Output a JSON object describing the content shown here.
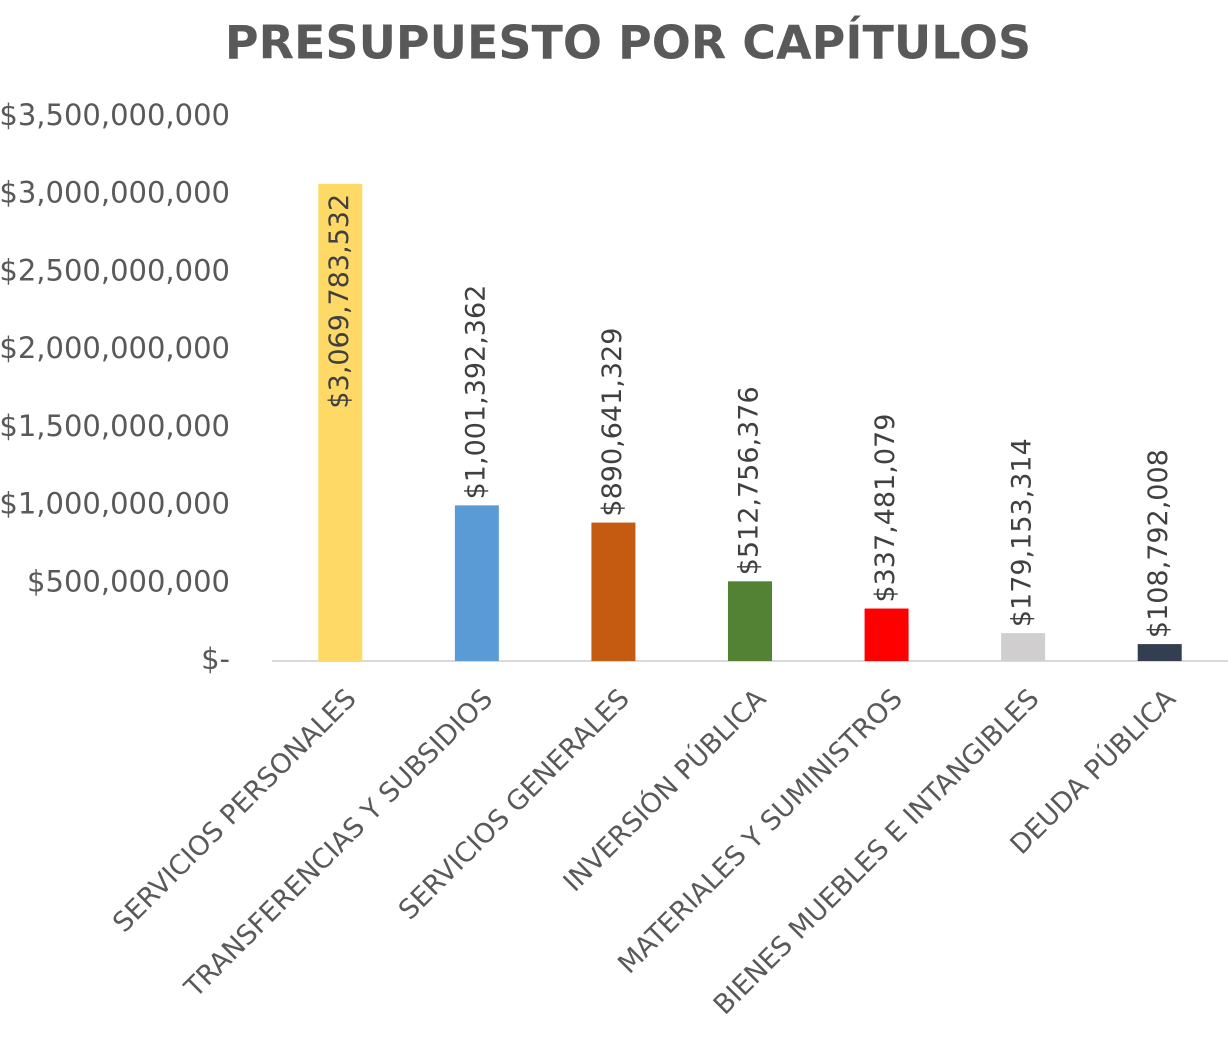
{
  "chart_data": {
    "type": "bar",
    "title": "PRESUPUESTO POR CAPÍTULOS",
    "categories": [
      "SERVICIOS PERSONALES",
      "TRANSFERENCIAS Y SUBSIDIOS",
      "SERVICIOS GENERALES",
      "INVERSIÓN PÚBLICA",
      "MATERIALES Y SUMINISTROS",
      "BIENES MUEBLES E INTANGIBLES",
      "DEUDA PÚBLICA"
    ],
    "values": [
      3069783532,
      1001392362,
      890641329,
      512756376,
      337481079,
      179153314,
      108792008
    ],
    "value_labels": [
      "$3,069,783,532",
      "$1,001,392,362",
      "$890,641,329",
      "$512,756,376",
      "$337,481,079",
      "$179,153,314",
      "$108,792,008"
    ],
    "colors": [
      "#ffd966",
      "#5b9bd5",
      "#c55a11",
      "#548235",
      "#ff0000",
      "#d0cece",
      "#333f50"
    ],
    "ylim": [
      0,
      3500000000
    ],
    "yticks": [
      {
        "value": 0,
        "label": "$-"
      },
      {
        "value": 500000000,
        "label": "$500,000,000"
      },
      {
        "value": 1000000000,
        "label": "$1,000,000,000"
      },
      {
        "value": 1500000000,
        "label": "$1,500,000,000"
      },
      {
        "value": 2000000000,
        "label": "$2,000,000,000"
      },
      {
        "value": 2500000000,
        "label": "$2,500,000,000"
      },
      {
        "value": 3000000000,
        "label": "$3,000,000,000"
      },
      {
        "value": 3500000000,
        "label": "$3,500,000,000"
      }
    ],
    "grid": false
  }
}
